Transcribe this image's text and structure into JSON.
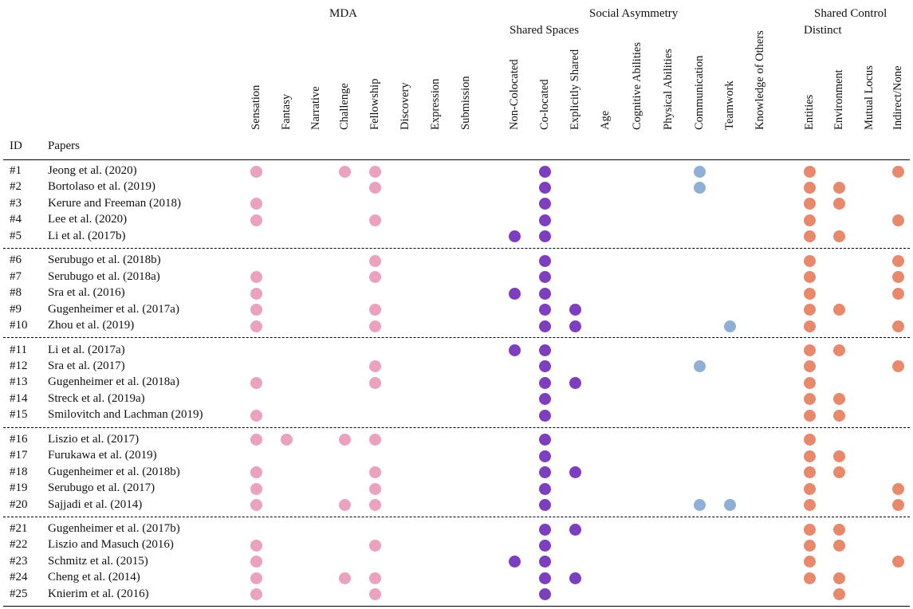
{
  "header": {
    "groups": {
      "mda": "MDA",
      "social_asymmetry": "Social Asymmetry",
      "shared_spaces": "Shared Spaces",
      "shared_control": "Shared Control",
      "distinct": "Distinct"
    },
    "id_label": "ID",
    "papers_label": "Papers"
  },
  "columns": [
    "Sensation",
    "Fantasy",
    "Narrative",
    "Challenge",
    "Fellowship",
    "Discovery",
    "Expression",
    "Submission",
    "Non-Colocated",
    "Co-located",
    "Explicitly Shared",
    "Age",
    "Cognitive Abilities",
    "Physical Abilities",
    "Communication",
    "Teamwork",
    "Knowledge of Others",
    "Entities",
    "Environment",
    "Mutual Locus",
    "Indirect/None"
  ],
  "colors": {
    "mda": "#eaa2bf",
    "spaces": "#7d3fbf",
    "social": "#8fb0d4",
    "control": "#e8896c"
  },
  "rows": [
    {
      "id": "#1",
      "paper": "Jeong et al. (2020)",
      "marks": [
        0,
        3,
        4,
        9,
        14,
        17,
        20
      ]
    },
    {
      "id": "#2",
      "paper": "Bortolaso et al. (2019)",
      "marks": [
        4,
        9,
        14,
        17,
        18
      ]
    },
    {
      "id": "#3",
      "paper": "Kerure and Freeman (2018)",
      "marks": [
        0,
        9,
        17,
        18
      ]
    },
    {
      "id": "#4",
      "paper": "Lee et al. (2020)",
      "marks": [
        0,
        4,
        9,
        17,
        20
      ]
    },
    {
      "id": "#5",
      "paper": "Li et al. (2017b)",
      "marks": [
        8,
        9,
        17,
        18
      ]
    },
    {
      "id": "#6",
      "paper": "Serubugo et al. (2018b)",
      "marks": [
        4,
        9,
        17,
        20
      ]
    },
    {
      "id": "#7",
      "paper": "Serubugo et al. (2018a)",
      "marks": [
        0,
        4,
        9,
        17,
        20
      ]
    },
    {
      "id": "#8",
      "paper": "Sra et al. (2016)",
      "marks": [
        0,
        8,
        9,
        17,
        20
      ]
    },
    {
      "id": "#9",
      "paper": "Gugenheimer et al. (2017a)",
      "marks": [
        0,
        4,
        9,
        10,
        17,
        18
      ]
    },
    {
      "id": "#10",
      "paper": "Zhou et al. (2019)",
      "marks": [
        0,
        4,
        9,
        10,
        15,
        17,
        20
      ]
    },
    {
      "id": "#11",
      "paper": "Li et al. (2017a)",
      "marks": [
        8,
        9,
        17,
        18
      ]
    },
    {
      "id": "#12",
      "paper": "Sra et al. (2017)",
      "marks": [
        4,
        9,
        14,
        17,
        20
      ]
    },
    {
      "id": "#13",
      "paper": "Gugenheimer et al. (2018a)",
      "marks": [
        0,
        4,
        9,
        10,
        17
      ]
    },
    {
      "id": "#14",
      "paper": "Streck et al. (2019a)",
      "marks": [
        9,
        17,
        18
      ]
    },
    {
      "id": "#15",
      "paper": "Smilovitch and Lachman (2019)",
      "marks": [
        0,
        9,
        17,
        18
      ]
    },
    {
      "id": "#16",
      "paper": "Liszio et al. (2017)",
      "marks": [
        0,
        1,
        3,
        4,
        9,
        17
      ]
    },
    {
      "id": "#17",
      "paper": "Furukawa et al. (2019)",
      "marks": [
        9,
        17,
        18
      ]
    },
    {
      "id": "#18",
      "paper": "Gugenheimer et al. (2018b)",
      "marks": [
        0,
        4,
        9,
        10,
        17,
        18
      ]
    },
    {
      "id": "#19",
      "paper": "Serubugo et al. (2017)",
      "marks": [
        0,
        4,
        9,
        17,
        20
      ]
    },
    {
      "id": "#20",
      "paper": "Sajjadi et al. (2014)",
      "marks": [
        0,
        3,
        4,
        9,
        14,
        15,
        17,
        20
      ]
    },
    {
      "id": "#21",
      "paper": "Gugenheimer et al. (2017b)",
      "marks": [
        9,
        10,
        17,
        18
      ]
    },
    {
      "id": "#22",
      "paper": "Liszio and Masuch (2016)",
      "marks": [
        0,
        4,
        9,
        17,
        18
      ]
    },
    {
      "id": "#23",
      "paper": "Schmitz et al. (2015)",
      "marks": [
        0,
        8,
        9,
        17,
        20
      ]
    },
    {
      "id": "#24",
      "paper": "Cheng et al. (2014)",
      "marks": [
        0,
        3,
        4,
        9,
        10,
        17,
        18
      ]
    },
    {
      "id": "#25",
      "paper": "Knierim et al. (2016)",
      "marks": [
        0,
        4,
        9,
        18
      ]
    }
  ]
}
